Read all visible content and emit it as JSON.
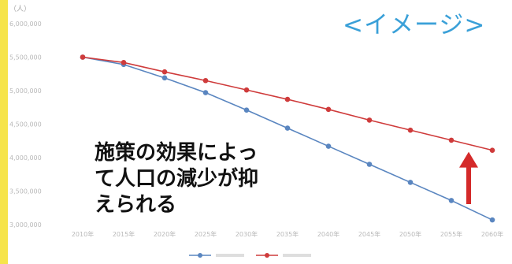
{
  "badge_text": "<イメージ>",
  "annotation_lines": [
    "施策の効果によっ",
    "て人口の減少が抑",
    "えられる"
  ],
  "colors": {
    "frame": "#f6e44a",
    "baseline_series": "#5a86c0",
    "policy_series": "#cf3b3b",
    "arrow": "#d42a2a",
    "badge": "#3aa0d8"
  },
  "chart_data": {
    "type": "line",
    "y_unit_label": "（人）",
    "ylim": [
      3000000,
      6000000
    ],
    "yticks": [
      "6,000,000",
      "5,500,000",
      "5,000,000",
      "4,500,000",
      "4,000,000",
      "3,500,000",
      "3,000,000"
    ],
    "ytick_values": [
      6000000,
      5500000,
      5000000,
      4500000,
      4000000,
      3500000,
      3000000
    ],
    "categories": [
      "2010年",
      "2015年",
      "2020年",
      "2025年",
      "2030年",
      "2035年",
      "2040年",
      "2045年",
      "2050年",
      "2055年",
      "2060年"
    ],
    "series": [
      {
        "name": "",
        "color": "#5a86c0",
        "values": [
          5500000,
          5390000,
          5190000,
          4970000,
          4710000,
          4440000,
          4170000,
          3900000,
          3630000,
          3360000,
          3070000
        ]
      },
      {
        "name": "",
        "color": "#cf3b3b",
        "values": [
          5500000,
          5420000,
          5280000,
          5150000,
          5010000,
          4870000,
          4720000,
          4560000,
          4410000,
          4260000,
          4110000
        ]
      }
    ],
    "grid": false,
    "legend": "bottom",
    "annotation_arrow": {
      "from_value": 3070000,
      "to_value": 4110000,
      "at_category": "2060年"
    }
  }
}
